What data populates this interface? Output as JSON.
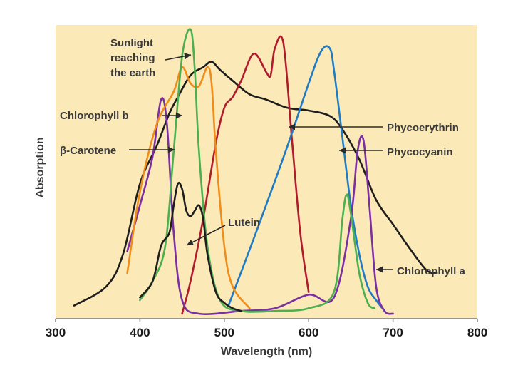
{
  "chart_data": {
    "type": "line",
    "xlabel": "Wavelength (nm)",
    "ylabel": "Absorption",
    "xlim": [
      300,
      800
    ],
    "x_ticks": [
      "300",
      "400",
      "500",
      "600",
      "700",
      "800"
    ],
    "grid": false,
    "colors": {
      "background": "#fbe9b7",
      "sunlight": "#1e1e1e",
      "chlorophyll_b": "#4caf50",
      "beta_carotene": "#f08c1a",
      "lutein": "#1e1e1e",
      "phycoerythrin": "#b01c2e",
      "phycocyanin": "#1e7bc4",
      "chlorophyll_a": "#7b2fa3"
    },
    "series": [
      {
        "name": "Sunlight reaching the earth",
        "label_lines": [
          "Sunlight",
          "reaching",
          "the earth"
        ],
        "color_key": "sunlight",
        "x": [
          322,
          360,
          380,
          400,
          420,
          435,
          445,
          460,
          475,
          485,
          495,
          510,
          530,
          550,
          575,
          600,
          625,
          640,
          660,
          680,
          700,
          720,
          740,
          752
        ],
        "y": [
          0.03,
          0.1,
          0.22,
          0.48,
          0.62,
          0.74,
          0.8,
          0.88,
          0.91,
          0.93,
          0.9,
          0.86,
          0.81,
          0.79,
          0.76,
          0.75,
          0.73,
          0.68,
          0.57,
          0.42,
          0.33,
          0.24,
          0.16,
          0.15
        ]
      },
      {
        "name": "Chlorophyll b",
        "label_lines": [
          "Chlorophyll b"
        ],
        "color_key": "chlorophyll_b",
        "x": [
          400,
          415,
          430,
          440,
          450,
          460,
          465,
          470,
          480,
          495,
          520,
          560,
          600,
          630,
          640,
          645,
          650,
          660,
          670,
          678
        ],
        "y": [
          0.05,
          0.12,
          0.25,
          0.6,
          0.95,
          1.05,
          0.9,
          0.6,
          0.25,
          0.05,
          0.01,
          0.01,
          0.02,
          0.08,
          0.35,
          0.44,
          0.37,
          0.15,
          0.04,
          0.02
        ]
      },
      {
        "name": "β-Carotene",
        "label_lines": [
          "β-Carotene"
        ],
        "color_key": "beta_carotene",
        "x": [
          385,
          400,
          420,
          440,
          450,
          460,
          470,
          480,
          485,
          490,
          500,
          510,
          530
        ],
        "y": [
          0.15,
          0.45,
          0.7,
          0.82,
          0.91,
          0.85,
          0.84,
          0.91,
          0.85,
          0.6,
          0.25,
          0.1,
          0.02
        ]
      },
      {
        "name": "Lutein",
        "label_lines": [
          "Lutein"
        ],
        "color_key": "lutein",
        "x": [
          400,
          415,
          425,
          435,
          440,
          445,
          450,
          455,
          460,
          465,
          470,
          475,
          480,
          490,
          500,
          510,
          520
        ],
        "y": [
          0.06,
          0.12,
          0.25,
          0.3,
          0.4,
          0.48,
          0.46,
          0.38,
          0.36,
          0.38,
          0.4,
          0.35,
          0.22,
          0.08,
          0.04,
          0.02,
          0.01
        ]
      },
      {
        "name": "Phycoerythrin",
        "label_lines": [
          "Phycoerythrin"
        ],
        "color_key": "phycoerythrin",
        "x": [
          450,
          460,
          475,
          490,
          500,
          510,
          520,
          535,
          550,
          555,
          560,
          570,
          580,
          590,
          600
        ],
        "y": [
          0.0,
          0.12,
          0.35,
          0.63,
          0.76,
          0.8,
          0.86,
          0.96,
          0.89,
          0.88,
          0.98,
          1.0,
          0.65,
          0.3,
          0.08
        ]
      },
      {
        "name": "Phycocyanin",
        "label_lines": [
          "Phycocyanin"
        ],
        "color_key": "phycocyanin",
        "x": [
          505,
          540,
          575,
          600,
          615,
          625,
          630,
          640,
          650,
          660,
          670,
          680,
          690
        ],
        "y": [
          0.03,
          0.32,
          0.62,
          0.85,
          0.97,
          0.98,
          0.9,
          0.65,
          0.4,
          0.22,
          0.1,
          0.05,
          0.01
        ]
      },
      {
        "name": "Chlorophyll a",
        "label_lines": [
          "Chlorophyll a"
        ],
        "color_key": "chlorophyll_a",
        "x": [
          385,
          400,
          415,
          425,
          432,
          440,
          450,
          470,
          520,
          560,
          600,
          630,
          650,
          658,
          665,
          672,
          680,
          690,
          700
        ],
        "y": [
          0.23,
          0.4,
          0.58,
          0.79,
          0.7,
          0.3,
          0.05,
          0.0,
          0.01,
          0.02,
          0.07,
          0.06,
          0.35,
          0.6,
          0.64,
          0.4,
          0.1,
          0.01,
          0.0
        ]
      }
    ]
  }
}
